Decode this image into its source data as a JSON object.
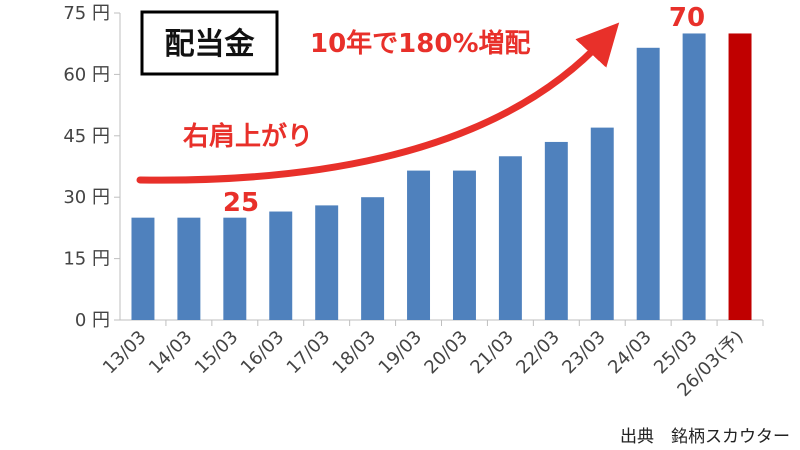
{
  "chart_data": {
    "type": "bar",
    "title": "配当金",
    "unit": "円",
    "categories": [
      "13/03",
      "14/03",
      "15/03",
      "16/03",
      "17/03",
      "18/03",
      "19/03",
      "20/03",
      "21/03",
      "22/03",
      "23/03",
      "24/03",
      "25/03",
      "26/03(予)"
    ],
    "values": [
      25,
      25,
      25,
      26.5,
      28,
      30,
      36.5,
      36.5,
      40,
      43.5,
      47,
      66.5,
      70,
      70
    ],
    "forecast_index": 13,
    "ylim": [
      0,
      75
    ],
    "y_ticks": [
      0,
      15,
      30,
      45,
      60,
      75
    ],
    "y_tick_labels": [
      "0 円",
      "15 円",
      "30 円",
      "45 円",
      "60 円",
      "75 円"
    ],
    "grid": false,
    "colors": {
      "bar": "#4f81bd",
      "forecast_bar": "#c00000",
      "annotation": "#e8302a",
      "axis": "#bfbfbf"
    },
    "annotations": {
      "growth": "10年で180%増配",
      "trend": "右肩上がり",
      "start_value": "25",
      "end_value": "70"
    },
    "source": "出典　銘柄スカウター"
  }
}
